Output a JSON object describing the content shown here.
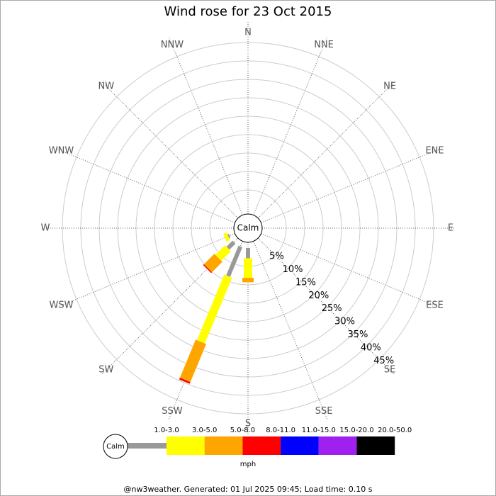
{
  "chart_data": {
    "type": "windrose",
    "title": "Wind rose for 23 Oct 2015",
    "calm_label": "Calm",
    "units_label": "mph",
    "footer": "@nw3weather. Generated: 01 Jul 2025 09:45; Load time: 0.10 s",
    "categories": [
      "N",
      "NNE",
      "NE",
      "ENE",
      "E",
      "ESE",
      "SE",
      "SSE",
      "S",
      "SSW",
      "SW",
      "WSW",
      "W",
      "WNW",
      "NW",
      "NNW"
    ],
    "ylim": [
      0,
      45
    ],
    "yticks": [
      {
        "value": 5,
        "label": "5%"
      },
      {
        "value": 10,
        "label": "10%"
      },
      {
        "value": 15,
        "label": "15%"
      },
      {
        "value": 20,
        "label": "20%"
      },
      {
        "value": 25,
        "label": "25%"
      },
      {
        "value": 30,
        "label": "30%"
      },
      {
        "value": 35,
        "label": "35%"
      },
      {
        "value": 40,
        "label": "40%"
      },
      {
        "value": 45,
        "label": "45%"
      }
    ],
    "series": [
      {
        "name": "1.0-3.0",
        "color": "#999999",
        "values": [
          0,
          0,
          0,
          0,
          0,
          0,
          0,
          0,
          2.8,
          8.7,
          2.3,
          0.4,
          0,
          0,
          0,
          0
        ]
      },
      {
        "name": "3.0-5.0",
        "color": "#ffff00",
        "values": [
          0,
          0,
          0,
          0,
          0,
          0,
          0,
          0,
          5.3,
          19.3,
          3.7,
          1.0,
          0,
          0,
          0,
          0
        ]
      },
      {
        "name": "5.0-8.0",
        "color": "#ffa500",
        "values": [
          0,
          0,
          0,
          0,
          0,
          0,
          0,
          0,
          1.2,
          11.2,
          4.0,
          0,
          0,
          0,
          0,
          0
        ]
      },
      {
        "name": "8.0-11.0",
        "color": "#ff0000",
        "values": [
          0,
          0,
          0,
          0,
          0,
          0,
          0,
          0,
          0,
          0.5,
          0.3,
          0,
          0,
          0,
          0,
          0
        ]
      },
      {
        "name": "11.0-15.0",
        "color": "#0000ff",
        "values": [
          0,
          0,
          0,
          0,
          0,
          0,
          0,
          0,
          0,
          0,
          0,
          0,
          0,
          0,
          0,
          0
        ]
      },
      {
        "name": "15.0-20.0",
        "color": "#a020f0",
        "values": [
          0,
          0,
          0,
          0,
          0,
          0,
          0,
          0,
          0,
          0,
          0,
          0,
          0,
          0,
          0,
          0
        ]
      },
      {
        "name": "20.0-50.0",
        "color": "#000000",
        "values": [
          0,
          0,
          0,
          0,
          0,
          0,
          0,
          0,
          0,
          0,
          0,
          0,
          0,
          0,
          0,
          0
        ]
      }
    ]
  }
}
